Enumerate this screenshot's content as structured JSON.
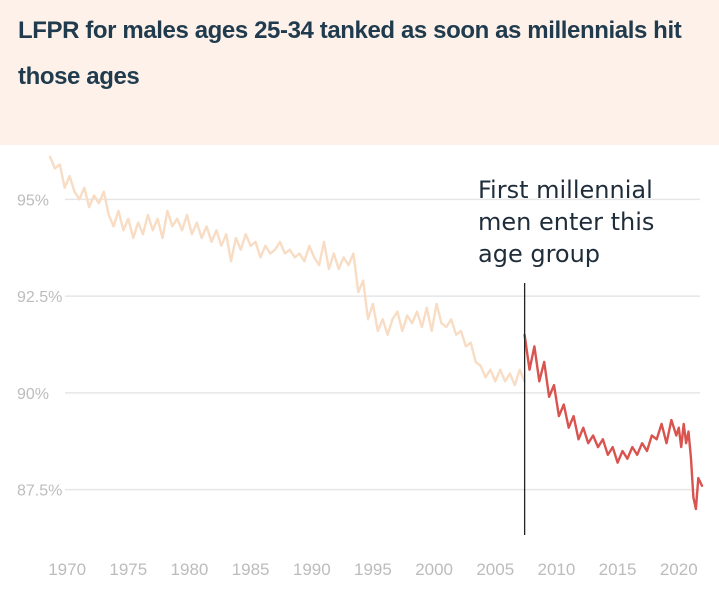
{
  "chart_data": {
    "type": "line",
    "title": "LFPR for males ages 25-34 tanked as soon as millennials hit those ages",
    "xlabel": "",
    "ylabel": "",
    "xlim": [
      1968.6,
      2021.9
    ],
    "ylim": [
      86.2,
      96.3
    ],
    "yticks": [
      95,
      92.5,
      90,
      87.5
    ],
    "ytick_labels": [
      "95%",
      "92.5%",
      "90%",
      "87.5%"
    ],
    "xticks": [
      1970,
      1975,
      1980,
      1985,
      1990,
      1995,
      2000,
      2005,
      2010,
      2015,
      2020
    ],
    "xtick_labels": [
      "1970",
      "1975",
      "1980",
      "1985",
      "1990",
      "1995",
      "2000",
      "2005",
      "2010",
      "2015",
      "2020"
    ],
    "grid": "horizontal",
    "legend": "none",
    "series": [
      {
        "color": "#f8dcc4",
        "x": [
          1968.6,
          1969,
          1969.4,
          1969.8,
          1970.2,
          1970.6,
          1971,
          1971.4,
          1971.8,
          1972.2,
          1972.6,
          1973,
          1973.4,
          1973.8,
          1974.2,
          1974.6,
          1975,
          1975.4,
          1975.8,
          1976.2,
          1976.6,
          1977,
          1977.4,
          1977.8,
          1978.2,
          1978.6,
          1979,
          1979.4,
          1979.8,
          1980.2,
          1980.6,
          1981,
          1981.4,
          1981.8,
          1982.2,
          1982.6,
          1983,
          1983.4,
          1983.8,
          1984.2,
          1984.6,
          1985,
          1985.4,
          1985.8,
          1986.2,
          1986.6,
          1987,
          1987.4,
          1987.8,
          1988.2,
          1988.6,
          1989,
          1989.4,
          1989.8,
          1990.2,
          1990.6,
          1991,
          1991.4,
          1991.8,
          1992.2,
          1992.6,
          1993,
          1993.4,
          1993.8,
          1994.2,
          1994.6,
          1995,
          1995.4,
          1995.8,
          1996.2,
          1996.6,
          1997,
          1997.4,
          1997.8,
          1998.2,
          1998.6,
          1999,
          1999.4,
          1999.8,
          2000.2,
          2000.6,
          2001,
          2001.4,
          2001.8,
          2002.2,
          2002.6,
          2003,
          2003.4,
          2003.8,
          2004.2,
          2004.6,
          2005,
          2005.4,
          2005.8,
          2006.2,
          2006.6,
          2007,
          2007.4
        ],
        "y": [
          96.1,
          95.8,
          95.9,
          95.3,
          95.6,
          95.2,
          95.0,
          95.3,
          94.8,
          95.1,
          94.9,
          95.2,
          94.6,
          94.3,
          94.7,
          94.2,
          94.5,
          94.0,
          94.4,
          94.1,
          94.6,
          94.2,
          94.5,
          94.0,
          94.7,
          94.3,
          94.5,
          94.2,
          94.6,
          94.1,
          94.4,
          94.0,
          94.3,
          93.9,
          94.2,
          93.8,
          94.1,
          93.4,
          94.0,
          93.7,
          94.1,
          93.8,
          93.9,
          93.5,
          93.8,
          93.6,
          93.7,
          93.9,
          93.6,
          93.7,
          93.5,
          93.6,
          93.4,
          93.8,
          93.5,
          93.3,
          93.9,
          93.2,
          93.6,
          93.2,
          93.5,
          93.3,
          93.6,
          92.6,
          92.9,
          91.9,
          92.3,
          91.6,
          91.9,
          91.5,
          91.9,
          92.1,
          91.6,
          92.0,
          91.8,
          92.1,
          91.7,
          92.2,
          91.6,
          92.3,
          91.8,
          91.7,
          91.9,
          91.5,
          91.6,
          91.2,
          91.3,
          90.8,
          90.7,
          90.4,
          90.6,
          90.3,
          90.6,
          90.3,
          90.5,
          90.2,
          90.6,
          90.3
        ]
      },
      {
        "color": "#d9534f",
        "x": [
          2007.4,
          2007.8,
          2008.2,
          2008.6,
          2009,
          2009.4,
          2009.8,
          2010.2,
          2010.6,
          2011,
          2011.4,
          2011.8,
          2012.2,
          2012.6,
          2013,
          2013.4,
          2013.8,
          2014.2,
          2014.6,
          2015,
          2015.4,
          2015.8,
          2016.2,
          2016.6,
          2017,
          2017.4,
          2017.8,
          2018.2,
          2018.6,
          2019,
          2019.4,
          2019.8,
          2020,
          2020.2,
          2020.4,
          2020.6,
          2020.8,
          2021,
          2021.2,
          2021.4,
          2021.6,
          2021.9
        ],
        "y": [
          91.5,
          90.6,
          91.2,
          90.3,
          90.8,
          89.9,
          90.2,
          89.4,
          89.7,
          89.1,
          89.4,
          88.8,
          89.1,
          88.7,
          88.9,
          88.6,
          88.8,
          88.4,
          88.6,
          88.2,
          88.5,
          88.3,
          88.6,
          88.4,
          88.7,
          88.5,
          88.9,
          88.8,
          89.2,
          88.7,
          89.3,
          88.9,
          89.1,
          88.6,
          89.2,
          88.7,
          89.0,
          88.3,
          87.3,
          87.0,
          87.8,
          87.6
        ]
      }
    ],
    "annotation": {
      "x": 2007.4,
      "lines": [
        "First millennial",
        "men enter this",
        "age group"
      ]
    }
  }
}
